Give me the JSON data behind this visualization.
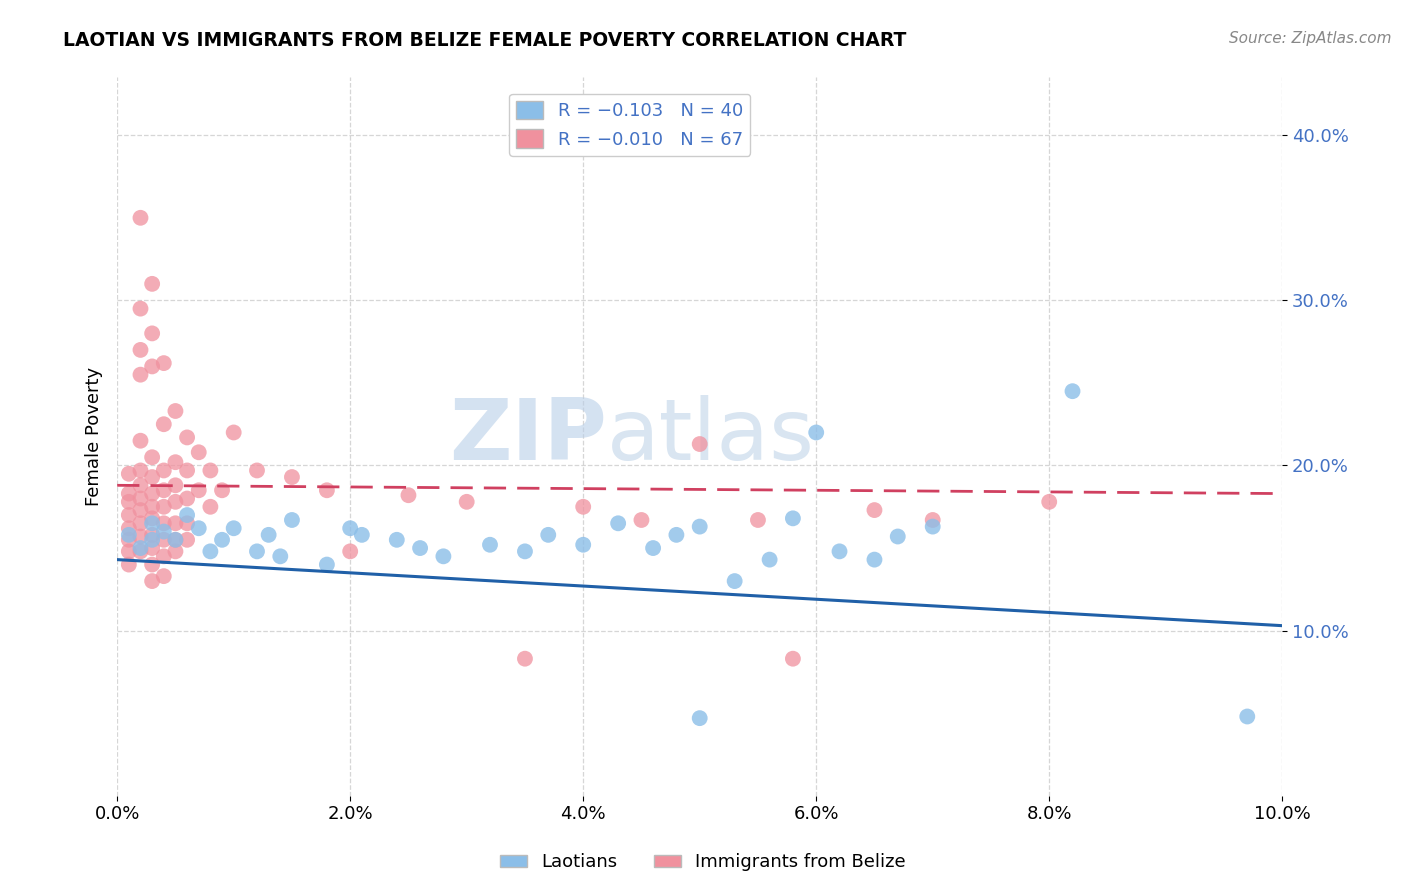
{
  "title": "LAOTIAN VS IMMIGRANTS FROM BELIZE FEMALE POVERTY CORRELATION CHART",
  "source": "Source: ZipAtlas.com",
  "ylabel": "Female Poverty",
  "xlim": [
    0.0,
    0.1
  ],
  "ylim": [
    0.0,
    0.435
  ],
  "xtick_labels": [
    "0.0%",
    "2.0%",
    "4.0%",
    "6.0%",
    "8.0%",
    "10.0%"
  ],
  "xtick_values": [
    0.0,
    0.02,
    0.04,
    0.06,
    0.08,
    0.1
  ],
  "ytick_labels": [
    "10.0%",
    "20.0%",
    "30.0%",
    "40.0%"
  ],
  "ytick_values": [
    0.1,
    0.2,
    0.3,
    0.4
  ],
  "laotian_color": "#8bbee8",
  "belize_color": "#f0919e",
  "laotian_line_color": "#2060a8",
  "belize_line_color": "#d04060",
  "watermark_part1": "ZIP",
  "watermark_part2": "atlas",
  "watermark_color1": "#b8cfe8",
  "watermark_color2": "#c0d4e8",
  "laotian_points": [
    [
      0.001,
      0.158
    ],
    [
      0.002,
      0.15
    ],
    [
      0.003,
      0.165
    ],
    [
      0.003,
      0.155
    ],
    [
      0.004,
      0.16
    ],
    [
      0.005,
      0.155
    ],
    [
      0.006,
      0.17
    ],
    [
      0.007,
      0.162
    ],
    [
      0.008,
      0.148
    ],
    [
      0.009,
      0.155
    ],
    [
      0.01,
      0.162
    ],
    [
      0.012,
      0.148
    ],
    [
      0.013,
      0.158
    ],
    [
      0.014,
      0.145
    ],
    [
      0.015,
      0.167
    ],
    [
      0.018,
      0.14
    ],
    [
      0.02,
      0.162
    ],
    [
      0.021,
      0.158
    ],
    [
      0.024,
      0.155
    ],
    [
      0.026,
      0.15
    ],
    [
      0.028,
      0.145
    ],
    [
      0.032,
      0.152
    ],
    [
      0.035,
      0.148
    ],
    [
      0.037,
      0.158
    ],
    [
      0.04,
      0.152
    ],
    [
      0.043,
      0.165
    ],
    [
      0.046,
      0.15
    ],
    [
      0.048,
      0.158
    ],
    [
      0.05,
      0.163
    ],
    [
      0.053,
      0.13
    ],
    [
      0.056,
      0.143
    ],
    [
      0.058,
      0.168
    ],
    [
      0.06,
      0.22
    ],
    [
      0.062,
      0.148
    ],
    [
      0.065,
      0.143
    ],
    [
      0.067,
      0.157
    ],
    [
      0.07,
      0.163
    ],
    [
      0.082,
      0.245
    ],
    [
      0.05,
      0.047
    ],
    [
      0.097,
      0.048
    ]
  ],
  "belize_points": [
    [
      0.001,
      0.195
    ],
    [
      0.001,
      0.183
    ],
    [
      0.001,
      0.178
    ],
    [
      0.001,
      0.17
    ],
    [
      0.001,
      0.162
    ],
    [
      0.001,
      0.155
    ],
    [
      0.001,
      0.148
    ],
    [
      0.001,
      0.14
    ],
    [
      0.002,
      0.35
    ],
    [
      0.002,
      0.295
    ],
    [
      0.002,
      0.27
    ],
    [
      0.002,
      0.255
    ],
    [
      0.002,
      0.215
    ],
    [
      0.002,
      0.197
    ],
    [
      0.002,
      0.188
    ],
    [
      0.002,
      0.18
    ],
    [
      0.002,
      0.173
    ],
    [
      0.002,
      0.165
    ],
    [
      0.002,
      0.157
    ],
    [
      0.002,
      0.148
    ],
    [
      0.003,
      0.31
    ],
    [
      0.003,
      0.28
    ],
    [
      0.003,
      0.26
    ],
    [
      0.003,
      0.205
    ],
    [
      0.003,
      0.193
    ],
    [
      0.003,
      0.183
    ],
    [
      0.003,
      0.175
    ],
    [
      0.003,
      0.168
    ],
    [
      0.003,
      0.158
    ],
    [
      0.003,
      0.15
    ],
    [
      0.003,
      0.14
    ],
    [
      0.003,
      0.13
    ],
    [
      0.004,
      0.262
    ],
    [
      0.004,
      0.225
    ],
    [
      0.004,
      0.197
    ],
    [
      0.004,
      0.185
    ],
    [
      0.004,
      0.175
    ],
    [
      0.004,
      0.165
    ],
    [
      0.004,
      0.155
    ],
    [
      0.004,
      0.145
    ],
    [
      0.004,
      0.133
    ],
    [
      0.005,
      0.233
    ],
    [
      0.005,
      0.202
    ],
    [
      0.005,
      0.188
    ],
    [
      0.005,
      0.178
    ],
    [
      0.005,
      0.165
    ],
    [
      0.005,
      0.155
    ],
    [
      0.005,
      0.148
    ],
    [
      0.006,
      0.217
    ],
    [
      0.006,
      0.197
    ],
    [
      0.006,
      0.18
    ],
    [
      0.006,
      0.165
    ],
    [
      0.006,
      0.155
    ],
    [
      0.007,
      0.208
    ],
    [
      0.007,
      0.185
    ],
    [
      0.008,
      0.197
    ],
    [
      0.008,
      0.175
    ],
    [
      0.009,
      0.185
    ],
    [
      0.01,
      0.22
    ],
    [
      0.012,
      0.197
    ],
    [
      0.015,
      0.193
    ],
    [
      0.018,
      0.185
    ],
    [
      0.02,
      0.148
    ],
    [
      0.025,
      0.182
    ],
    [
      0.03,
      0.178
    ],
    [
      0.035,
      0.083
    ],
    [
      0.04,
      0.175
    ],
    [
      0.045,
      0.167
    ],
    [
      0.05,
      0.213
    ],
    [
      0.055,
      0.167
    ],
    [
      0.058,
      0.083
    ],
    [
      0.065,
      0.173
    ],
    [
      0.07,
      0.167
    ],
    [
      0.08,
      0.178
    ]
  ],
  "laotian_line_x": [
    0.0,
    0.1
  ],
  "laotian_line_y": [
    0.143,
    0.103
  ],
  "belize_line_x": [
    0.0,
    0.1
  ],
  "belize_line_y": [
    0.188,
    0.183
  ]
}
